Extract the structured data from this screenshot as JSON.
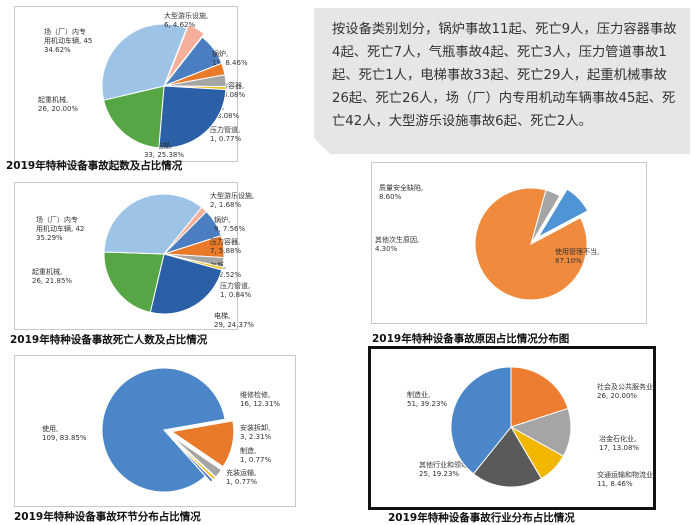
{
  "summary_text": "按设备类别划分，锅炉事故11起、死亡9人，压力容器事故4起、死亡7人，气瓶事故4起、死亡3人，压力管道事故1起、死亡1人，电梯事故33起、死亡29人，起重机械事故26起、死亡26人，场（厂）内专用机动车辆事故45起、死亡42人，大型游乐设施事故6起、死亡2人。",
  "chart_data": [
    {
      "id": "accidents",
      "type": "pie",
      "title": "2019年特种设备事故起数及占比情况",
      "slices": [
        {
          "label": "锅炉, 11, 8.46%",
          "value": 11,
          "color": "#4a7ec0"
        },
        {
          "label": "压力容器, 4, 3.08%",
          "value": 4,
          "color": "#e97a2a"
        },
        {
          "label": "气瓶, 4, 3.08%",
          "value": 4,
          "color": "#a5a5a5"
        },
        {
          "label": "压力管道, 1, 0.77%",
          "value": 1,
          "color": "#f3bf12"
        },
        {
          "label": "电梯, 33, 25.38%",
          "value": 33,
          "color": "#2b5fa6"
        },
        {
          "label": "起重机械, 26, 20.00%",
          "value": 26,
          "color": "#57a646"
        },
        {
          "label": "场（厂）内专用机动车辆, 45, 34.62%",
          "value": 45,
          "color": "#9dc3e6"
        },
        {
          "label": "大型游乐设施, 6, 4.62%",
          "value": 6,
          "color": "#f4b09a"
        }
      ]
    },
    {
      "id": "deaths",
      "type": "pie",
      "title": "2019年特种设备事故死亡人数及占比情况",
      "slices": [
        {
          "label": "锅炉, 9, 7.56%",
          "value": 9,
          "color": "#4a7ec0"
        },
        {
          "label": "压力容器, 7, 5.88%",
          "value": 7,
          "color": "#e97a2a"
        },
        {
          "label": "气瓶, 3, 2.52%",
          "value": 3,
          "color": "#a5a5a5"
        },
        {
          "label": "压力管道, 1, 0.84%",
          "value": 1,
          "color": "#f3bf12"
        },
        {
          "label": "电梯, 29, 24.37%",
          "value": 29,
          "color": "#2b5fa6"
        },
        {
          "label": "起重机械, 26, 21.85%",
          "value": 26,
          "color": "#57a646"
        },
        {
          "label": "场（厂）内专用机动车辆, 42, 35.29%",
          "value": 42,
          "color": "#9dc3e6"
        },
        {
          "label": "大型游乐设施, 2, 1.68%",
          "value": 2,
          "color": "#f4b09a"
        }
      ]
    },
    {
      "id": "causes",
      "type": "pie",
      "title": "2019年特种设备事故原因占比情况分布图",
      "slices": [
        {
          "label": "使用管理不当, 87.10%",
          "value": 87.1,
          "color": "#f08a3c"
        },
        {
          "label": "其他次生原因, 4.30%",
          "value": 4.3,
          "color": "#a5a5a5"
        },
        {
          "label": "质量安全缺陷, 8.60%",
          "value": 8.6,
          "color": "#4f94d4"
        }
      ]
    },
    {
      "id": "stages",
      "type": "pie",
      "title": "2019年特种设备事故环节分布占比情况",
      "slices": [
        {
          "label": "维修检修, 16, 12.31%",
          "value": 16,
          "color": "#e97a2a"
        },
        {
          "label": "安装拆卸, 3, 2.31%",
          "value": 3,
          "color": "#a5a5a5"
        },
        {
          "label": "制造, 1, 0.77%",
          "value": 1,
          "color": "#f3bf12"
        },
        {
          "label": "充装运输, 1, 0.77%",
          "value": 1,
          "color": "#4472c4"
        },
        {
          "label": "使用, 109, 83.85%",
          "value": 109,
          "color": "#4a86c8"
        }
      ]
    },
    {
      "id": "industries",
      "type": "pie",
      "title": "2019年特种设备事故行业分布占比情况",
      "slices": [
        {
          "label": "社会及公共服务业, 26, 20.00%",
          "value": 26,
          "color": "#ed7d31"
        },
        {
          "label": "冶金石化业, 17, 13.08%",
          "value": 17,
          "color": "#a5a5a5"
        },
        {
          "label": "交通运输和物流业, 11, 8.46%",
          "value": 11,
          "color": "#f2b800"
        },
        {
          "label": "其他行业和领域, 25, 19.23%",
          "value": 25,
          "color": "#5a5a5a"
        },
        {
          "label": "制造业, 51, 39.23%",
          "value": 51,
          "color": "#4a86c8"
        }
      ]
    }
  ]
}
